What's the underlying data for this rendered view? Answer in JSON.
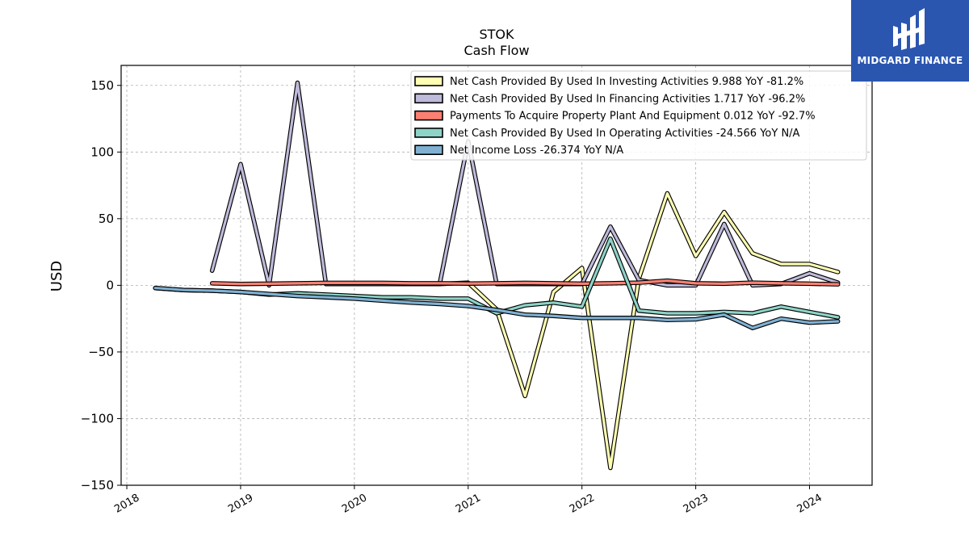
{
  "chart_data": {
    "type": "line",
    "title": "STOK",
    "subtitle": "Cash Flow",
    "ylabel": "USD",
    "xlabel": "",
    "ylim": [
      -150,
      165
    ],
    "xlim": [
      2017.95,
      2024.55
    ],
    "grid": true,
    "legend_position": "top-right",
    "y_ticks": [
      150,
      100,
      50,
      0,
      -50,
      -100,
      -150
    ],
    "y_tick_labels": [
      "150",
      "100",
      "50",
      "0",
      "−50",
      "−100",
      "−150"
    ],
    "x_ticks": [
      2018,
      2019,
      2020,
      2021,
      2022,
      2023,
      2024
    ],
    "x_tick_labels": [
      "2018",
      "2019",
      "2020",
      "2021",
      "2022",
      "2023",
      "2024"
    ],
    "series": [
      {
        "name": "Net Cash Provided By Used In Investing Activities",
        "legend_label": "Net Cash Provided By Used In Investing Activities  9.988 YoY -81.2%",
        "color": "#ffffb3",
        "points": [
          [
            2020.75,
            1
          ],
          [
            2021.0,
            2
          ],
          [
            2021.25,
            -18
          ],
          [
            2021.5,
            -83
          ],
          [
            2021.75,
            -5
          ],
          [
            2022.0,
            13
          ],
          [
            2022.25,
            -137
          ],
          [
            2022.5,
            5
          ],
          [
            2022.75,
            69
          ],
          [
            2023.0,
            22
          ],
          [
            2023.25,
            55
          ],
          [
            2023.5,
            24
          ],
          [
            2023.75,
            16
          ],
          [
            2024.0,
            16
          ],
          [
            2024.25,
            10
          ]
        ]
      },
      {
        "name": "Net Cash Provided By Used In Financing Activities",
        "legend_label": "Net Cash Provided By Used In Financing Activities  1.717 YoY -96.2%",
        "color": "#bebada",
        "points": [
          [
            2018.75,
            11
          ],
          [
            2019.0,
            91
          ],
          [
            2019.25,
            0
          ],
          [
            2019.5,
            152
          ],
          [
            2019.75,
            1
          ],
          [
            2020.0,
            1
          ],
          [
            2020.25,
            1
          ],
          [
            2020.5,
            1
          ],
          [
            2020.75,
            1
          ],
          [
            2021.0,
            108
          ],
          [
            2021.25,
            1
          ],
          [
            2021.5,
            1
          ],
          [
            2021.75,
            1
          ],
          [
            2022.0,
            1
          ],
          [
            2022.25,
            44
          ],
          [
            2022.5,
            4
          ],
          [
            2022.75,
            0
          ],
          [
            2023.0,
            0
          ],
          [
            2023.25,
            46
          ],
          [
            2023.5,
            0
          ],
          [
            2023.75,
            1
          ],
          [
            2024.0,
            9
          ],
          [
            2024.25,
            2
          ]
        ]
      },
      {
        "name": "Payments To Acquire Property Plant And Equipment",
        "legend_label": "Payments To Acquire Property Plant And Equipment  0.012 YoY -92.7%",
        "color": "#fb8072",
        "points": [
          [
            2018.75,
            1.5
          ],
          [
            2019.0,
            1
          ],
          [
            2019.25,
            1.2
          ],
          [
            2019.5,
            1.5
          ],
          [
            2019.75,
            1.8
          ],
          [
            2020.0,
            1.8
          ],
          [
            2020.25,
            1.8
          ],
          [
            2020.5,
            1.5
          ],
          [
            2020.75,
            1.5
          ],
          [
            2021.0,
            1.3
          ],
          [
            2021.25,
            1.5
          ],
          [
            2021.5,
            1.8
          ],
          [
            2021.75,
            1.5
          ],
          [
            2022.0,
            1.2
          ],
          [
            2022.25,
            1.5
          ],
          [
            2022.5,
            2
          ],
          [
            2022.75,
            3.5
          ],
          [
            2023.0,
            1.5
          ],
          [
            2023.25,
            1.2
          ],
          [
            2023.5,
            2
          ],
          [
            2023.75,
            1.5
          ],
          [
            2024.0,
            1.2
          ],
          [
            2024.25,
            0.8
          ]
        ]
      },
      {
        "name": "Net Cash Provided By Used In Operating Activities",
        "legend_label": "Net Cash Provided By Used In Operating Activities  -24.566 YoY N/A",
        "color": "#8dd3c7",
        "points": [
          [
            2018.25,
            -2
          ],
          [
            2018.5,
            -3.5
          ],
          [
            2018.75,
            -4
          ],
          [
            2019.0,
            -5
          ],
          [
            2019.25,
            -7
          ],
          [
            2019.5,
            -6
          ],
          [
            2019.75,
            -7
          ],
          [
            2020.0,
            -8
          ],
          [
            2020.25,
            -9
          ],
          [
            2020.5,
            -9
          ],
          [
            2020.75,
            -10
          ],
          [
            2021.0,
            -10
          ],
          [
            2021.25,
            -21
          ],
          [
            2021.5,
            -15
          ],
          [
            2021.75,
            -13
          ],
          [
            2022.0,
            -16
          ],
          [
            2022.25,
            35
          ],
          [
            2022.5,
            -19
          ],
          [
            2022.75,
            -21
          ],
          [
            2023.0,
            -21
          ],
          [
            2023.25,
            -20
          ],
          [
            2023.5,
            -21
          ],
          [
            2023.75,
            -16
          ],
          [
            2024.0,
            -20
          ],
          [
            2024.25,
            -24
          ]
        ]
      },
      {
        "name": "Net Income Loss",
        "legend_label": "Net Income Loss  -26.374 YoY N/A",
        "color": "#80b1d3",
        "points": [
          [
            2018.25,
            -2
          ],
          [
            2018.5,
            -3.5
          ],
          [
            2018.75,
            -4
          ],
          [
            2019.0,
            -5
          ],
          [
            2019.25,
            -6.5
          ],
          [
            2019.5,
            -8
          ],
          [
            2019.75,
            -9
          ],
          [
            2020.0,
            -10
          ],
          [
            2020.25,
            -11.5
          ],
          [
            2020.5,
            -13
          ],
          [
            2020.75,
            -14
          ],
          [
            2021.0,
            -15.5
          ],
          [
            2021.25,
            -18.5
          ],
          [
            2021.5,
            -22
          ],
          [
            2021.75,
            -23
          ],
          [
            2022.0,
            -24.5
          ],
          [
            2022.25,
            -24.5
          ],
          [
            2022.5,
            -24.5
          ],
          [
            2022.75,
            -26
          ],
          [
            2023.0,
            -25.5
          ],
          [
            2023.25,
            -22
          ],
          [
            2023.5,
            -32
          ],
          [
            2023.75,
            -25
          ],
          [
            2024.0,
            -28
          ],
          [
            2024.25,
            -27
          ]
        ]
      }
    ]
  },
  "logo": {
    "text": "MIDGARD FINANCE",
    "color": "#2a56b0"
  }
}
